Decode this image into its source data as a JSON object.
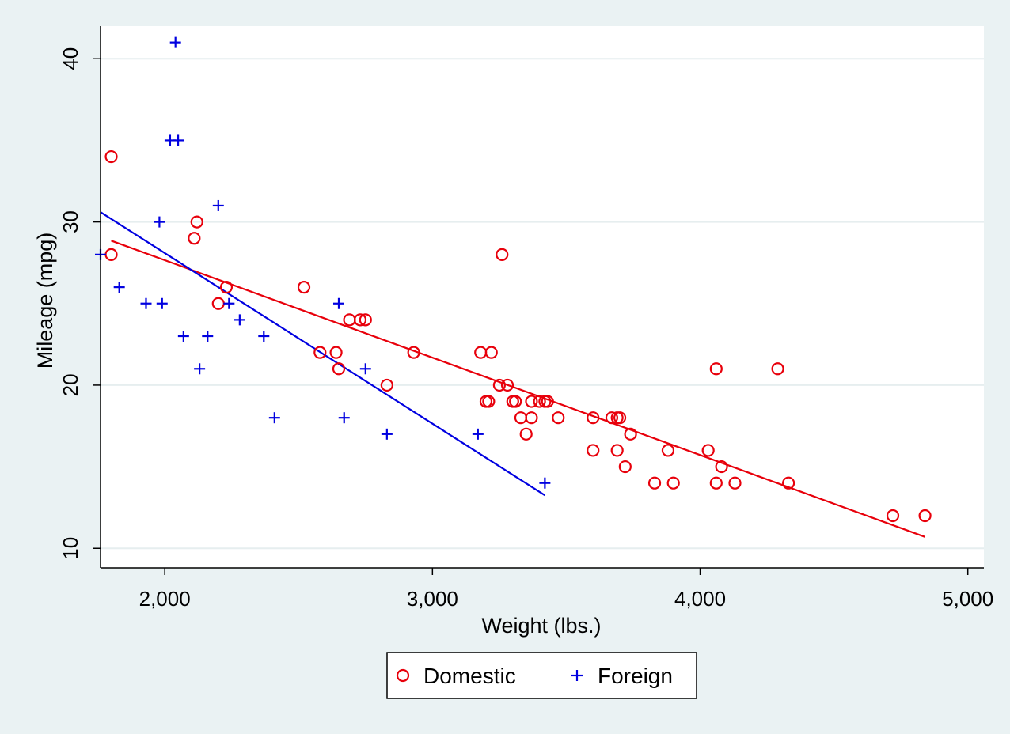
{
  "chart_data": {
    "type": "scatter",
    "title": "",
    "xlabel": "Weight (lbs.)",
    "ylabel": "Mileage (mpg)",
    "xlim": [
      1760,
      5060
    ],
    "ylim": [
      8.8,
      42
    ],
    "xticks": [
      {
        "value": 2000,
        "label": "2,000"
      },
      {
        "value": 3000,
        "label": "3,000"
      },
      {
        "value": 4000,
        "label": "4,000"
      },
      {
        "value": 5000,
        "label": "5,000"
      }
    ],
    "yticks": [
      {
        "value": 10,
        "label": "10"
      },
      {
        "value": 20,
        "label": "20"
      },
      {
        "value": 30,
        "label": "30"
      },
      {
        "value": 40,
        "label": "40"
      }
    ],
    "grid": "horizontal",
    "legend": "bottom",
    "series": [
      {
        "name": "Domestic",
        "marker": "circle",
        "color": "#e8000b",
        "points": [
          [
            1800,
            34
          ],
          [
            1800,
            28
          ],
          [
            2110,
            29
          ],
          [
            2120,
            30
          ],
          [
            2200,
            25
          ],
          [
            2230,
            26
          ],
          [
            2520,
            26
          ],
          [
            2580,
            22
          ],
          [
            2640,
            22
          ],
          [
            2650,
            21
          ],
          [
            2690,
            24
          ],
          [
            2730,
            24
          ],
          [
            2750,
            24
          ],
          [
            2830,
            20
          ],
          [
            2930,
            22
          ],
          [
            3180,
            22
          ],
          [
            3200,
            19
          ],
          [
            3210,
            19
          ],
          [
            3220,
            22
          ],
          [
            3250,
            20
          ],
          [
            3260,
            28
          ],
          [
            3280,
            20
          ],
          [
            3300,
            19
          ],
          [
            3310,
            19
          ],
          [
            3330,
            18
          ],
          [
            3350,
            17
          ],
          [
            3370,
            19
          ],
          [
            3370,
            18
          ],
          [
            3400,
            19
          ],
          [
            3420,
            19
          ],
          [
            3430,
            19
          ],
          [
            3470,
            18
          ],
          [
            3600,
            18
          ],
          [
            3600,
            16
          ],
          [
            3670,
            18
          ],
          [
            3690,
            18
          ],
          [
            3690,
            16
          ],
          [
            3700,
            18
          ],
          [
            3720,
            15
          ],
          [
            3740,
            17
          ],
          [
            3830,
            14
          ],
          [
            3880,
            16
          ],
          [
            3900,
            14
          ],
          [
            4030,
            16
          ],
          [
            4060,
            21
          ],
          [
            4060,
            14
          ],
          [
            4080,
            15
          ],
          [
            4130,
            14
          ],
          [
            4290,
            21
          ],
          [
            4330,
            14
          ],
          [
            4720,
            12
          ],
          [
            4840,
            12
          ]
        ],
        "fit_line": [
          [
            1800,
            28.85
          ],
          [
            4840,
            10.7
          ]
        ]
      },
      {
        "name": "Foreign",
        "marker": "plus",
        "color": "#0000e0",
        "points": [
          [
            1760,
            28
          ],
          [
            1830,
            26
          ],
          [
            1930,
            25
          ],
          [
            1980,
            30
          ],
          [
            1990,
            25
          ],
          [
            2020,
            35
          ],
          [
            2040,
            41
          ],
          [
            2050,
            35
          ],
          [
            2070,
            23
          ],
          [
            2130,
            21
          ],
          [
            2160,
            23
          ],
          [
            2200,
            31
          ],
          [
            2240,
            25
          ],
          [
            2280,
            24
          ],
          [
            2370,
            23
          ],
          [
            2410,
            18
          ],
          [
            2650,
            25
          ],
          [
            2670,
            18
          ],
          [
            2750,
            21
          ],
          [
            2830,
            17
          ],
          [
            3170,
            17
          ],
          [
            3420,
            14
          ]
        ],
        "fit_line": [
          [
            1760,
            30.6
          ],
          [
            3420,
            13.25
          ]
        ]
      }
    ]
  }
}
